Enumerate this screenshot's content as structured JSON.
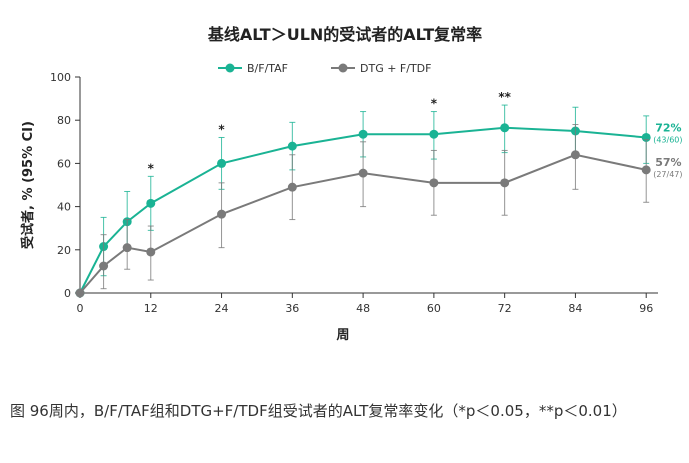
{
  "chart_data": {
    "type": "line",
    "title": "基线ALT＞ULN的受试者的ALT复常率",
    "xlabel": "周",
    "ylabel": "受试者, % (95% CI)",
    "x": [
      0,
      4,
      8,
      12,
      24,
      36,
      48,
      60,
      72,
      84,
      96
    ],
    "x_ticks": [
      0,
      12,
      24,
      36,
      48,
      60,
      72,
      84,
      96
    ],
    "xlim": [
      0,
      98
    ],
    "ylim": [
      0,
      100
    ],
    "y_ticks": [
      0,
      20,
      40,
      60,
      80,
      100
    ],
    "grid": false,
    "legend_position": "top-left",
    "series": [
      {
        "name": "B/F/TAF",
        "color": "#1ab394",
        "values": [
          0,
          21.5,
          33,
          41.5,
          60,
          68,
          73.5,
          73.5,
          76.5,
          75,
          72
        ],
        "ci_low": [
          0,
          8,
          20,
          29,
          48,
          57,
          63,
          62,
          65,
          64,
          60
        ],
        "ci_high": [
          0,
          35,
          47,
          54,
          72,
          79,
          84,
          84,
          87,
          86,
          82
        ],
        "end_label": "72%",
        "end_sublabel": "(43/60)"
      },
      {
        "name": "DTG + F/TDF",
        "color": "#7a7a7a",
        "values": [
          0,
          12.5,
          21,
          19,
          36.5,
          49,
          55.5,
          51,
          51,
          64,
          57
        ],
        "ci_low": [
          0,
          2,
          11,
          6,
          21,
          34,
          40,
          36,
          36,
          48,
          42
        ],
        "ci_high": [
          0,
          27,
          34,
          31,
          51,
          64,
          70,
          66,
          66,
          78,
          71
        ],
        "end_label": "57%",
        "end_sublabel": "(27/47)"
      }
    ],
    "annotations": [
      {
        "x": 12,
        "text": "*"
      },
      {
        "x": 24,
        "text": "*"
      },
      {
        "x": 60,
        "text": "*"
      },
      {
        "x": 72,
        "text": "**"
      }
    ]
  },
  "caption": "图 96周内，B/F/TAF组和DTG+F/TDF组受试者的ALT复常率变化（*p＜0.05，**p＜0.01）"
}
